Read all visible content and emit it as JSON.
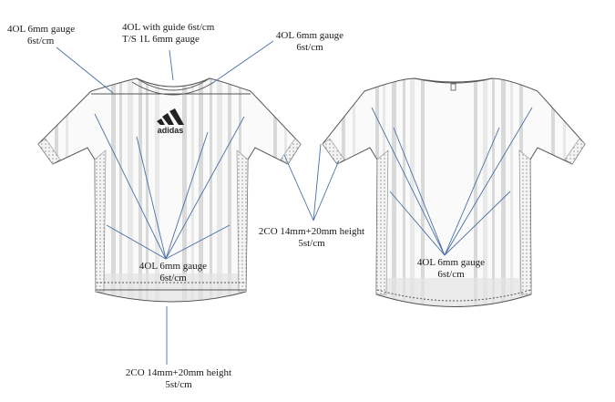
{
  "labels": {
    "collar_left": {
      "line1": "4OL 6mm gauge",
      "line2": "6st/cm"
    },
    "collar_center": {
      "line1": "4OL with guide 6st/cm",
      "line2": "T/S  1L 6mm gauge"
    },
    "collar_right": {
      "line1": "4OL 6mm gauge",
      "line2": "6st/cm"
    },
    "front_body": {
      "line1": "4OL 6mm gauge",
      "line2": "6st/cm"
    },
    "sleeve_cuff": {
      "line1": "2CO 14mm+20mm  height",
      "line2": "5st/cm"
    },
    "back_body": {
      "line1": "4OL 6mm gauge",
      "line2": "6st/cm"
    },
    "hem": {
      "line1": "2CO 14mm+20mm  height",
      "line2": "5st/cm"
    }
  },
  "brand": {
    "wordmark": "adidas",
    "logo_icon": "three-bars-logo-icon"
  },
  "colors": {
    "arrow": "#4a6fa5",
    "stripe": "#d9d9d9",
    "outline": "#555555"
  }
}
